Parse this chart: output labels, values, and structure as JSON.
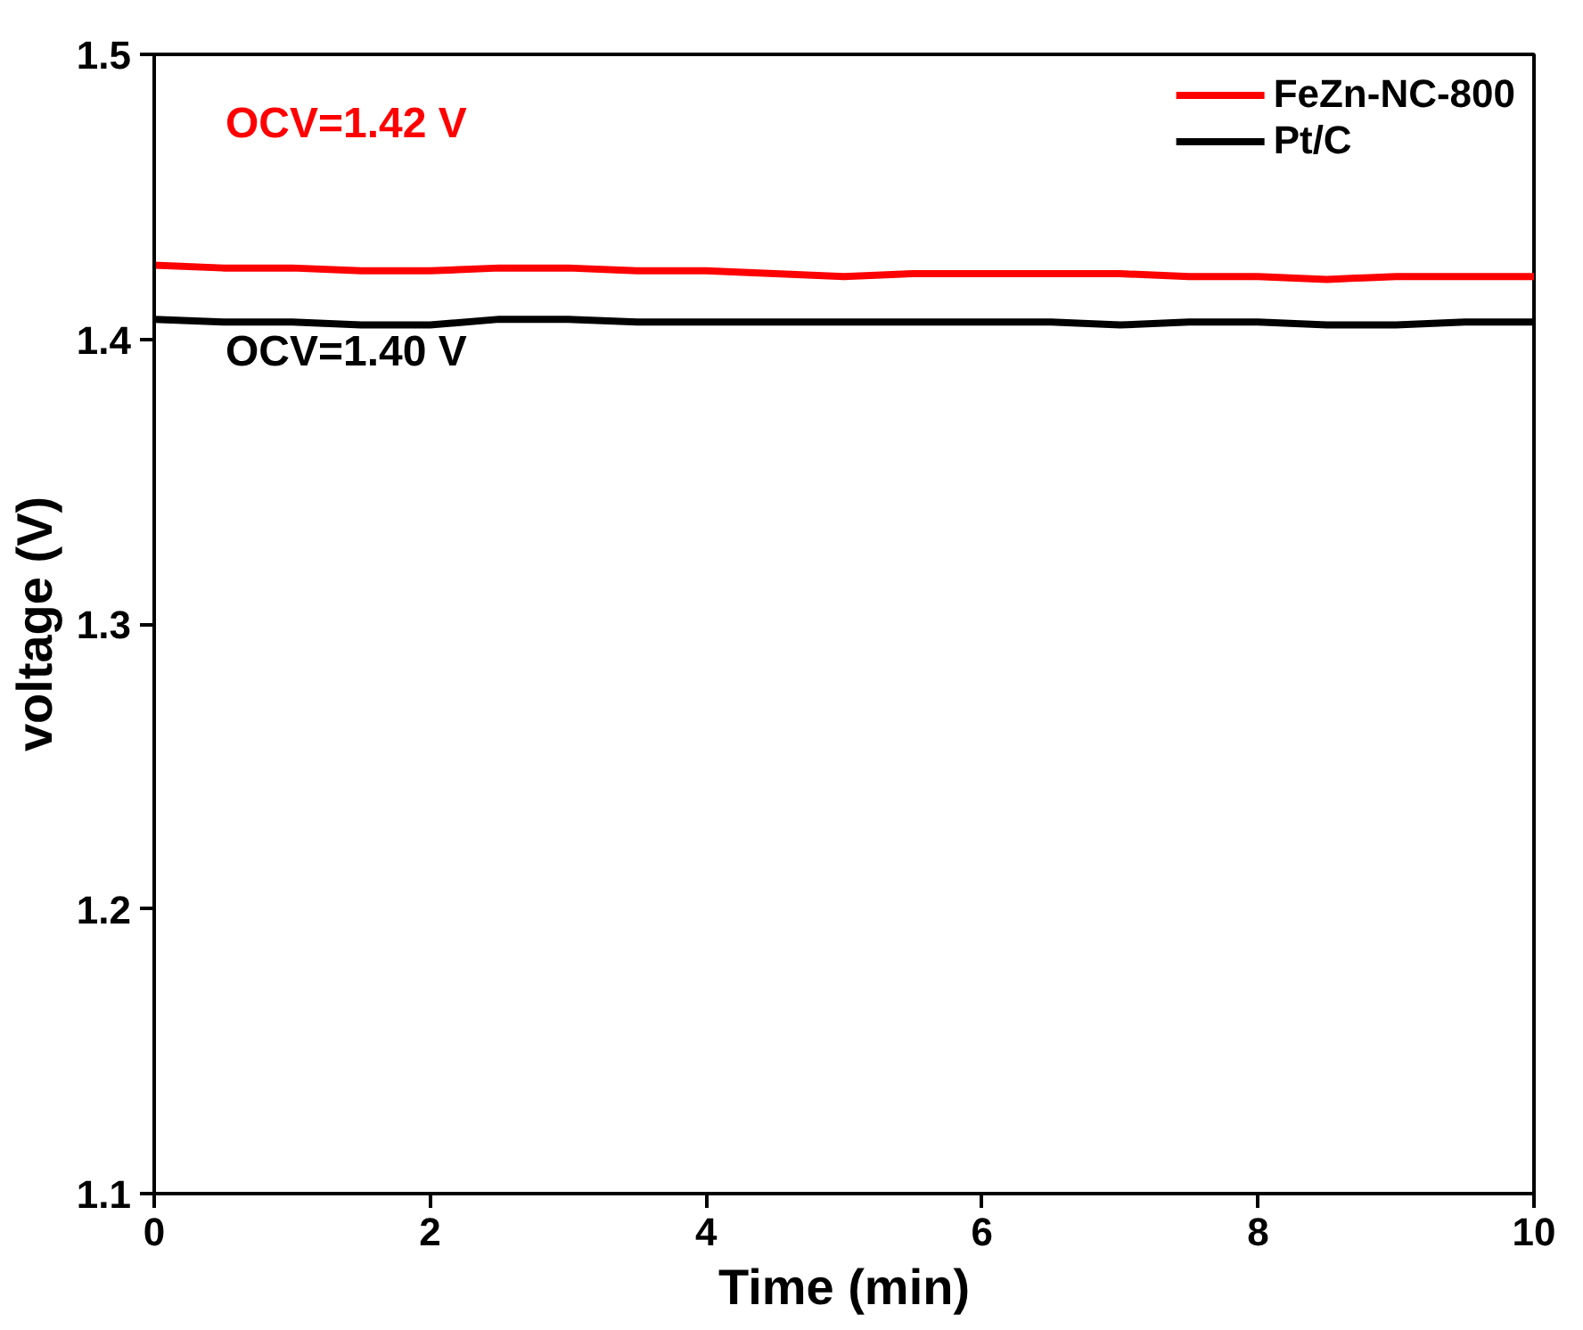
{
  "chart_data": {
    "type": "line",
    "xlabel": "Time (min)",
    "ylabel": "voltage (V)",
    "xlim": [
      0,
      10
    ],
    "ylim": [
      1.1,
      1.5
    ],
    "xticks": [
      0,
      2,
      4,
      6,
      8,
      10
    ],
    "yticks": [
      1.1,
      1.2,
      1.3,
      1.4,
      1.5
    ],
    "grid": false,
    "legend": "top right",
    "marker": "none",
    "line_style": "solid",
    "series": [
      {
        "name": "FeZn-NC-800",
        "color": "#ff0000",
        "x": [
          0,
          0.5,
          1,
          1.5,
          2,
          2.5,
          3,
          3.5,
          4,
          4.5,
          5,
          5.5,
          6,
          6.5,
          7,
          7.5,
          8,
          8.5,
          9,
          9.5,
          10
        ],
        "values": [
          1.426,
          1.425,
          1.425,
          1.424,
          1.424,
          1.425,
          1.425,
          1.424,
          1.424,
          1.423,
          1.422,
          1.423,
          1.423,
          1.423,
          1.423,
          1.422,
          1.422,
          1.421,
          1.422,
          1.422,
          1.422
        ]
      },
      {
        "name": "Pt/C",
        "color": "#000000",
        "x": [
          0,
          0.5,
          1,
          1.5,
          2,
          2.5,
          3,
          3.5,
          4,
          4.5,
          5,
          5.5,
          6,
          6.5,
          7,
          7.5,
          8,
          8.5,
          9,
          9.5,
          10
        ],
        "values": [
          1.407,
          1.406,
          1.406,
          1.405,
          1.405,
          1.407,
          1.407,
          1.406,
          1.406,
          1.406,
          1.406,
          1.406,
          1.406,
          1.406,
          1.405,
          1.406,
          1.406,
          1.405,
          1.405,
          1.406,
          1.406
        ]
      }
    ],
    "annotations": [
      "OCV=1.42 V",
      "OCV=1.40 V"
    ]
  }
}
